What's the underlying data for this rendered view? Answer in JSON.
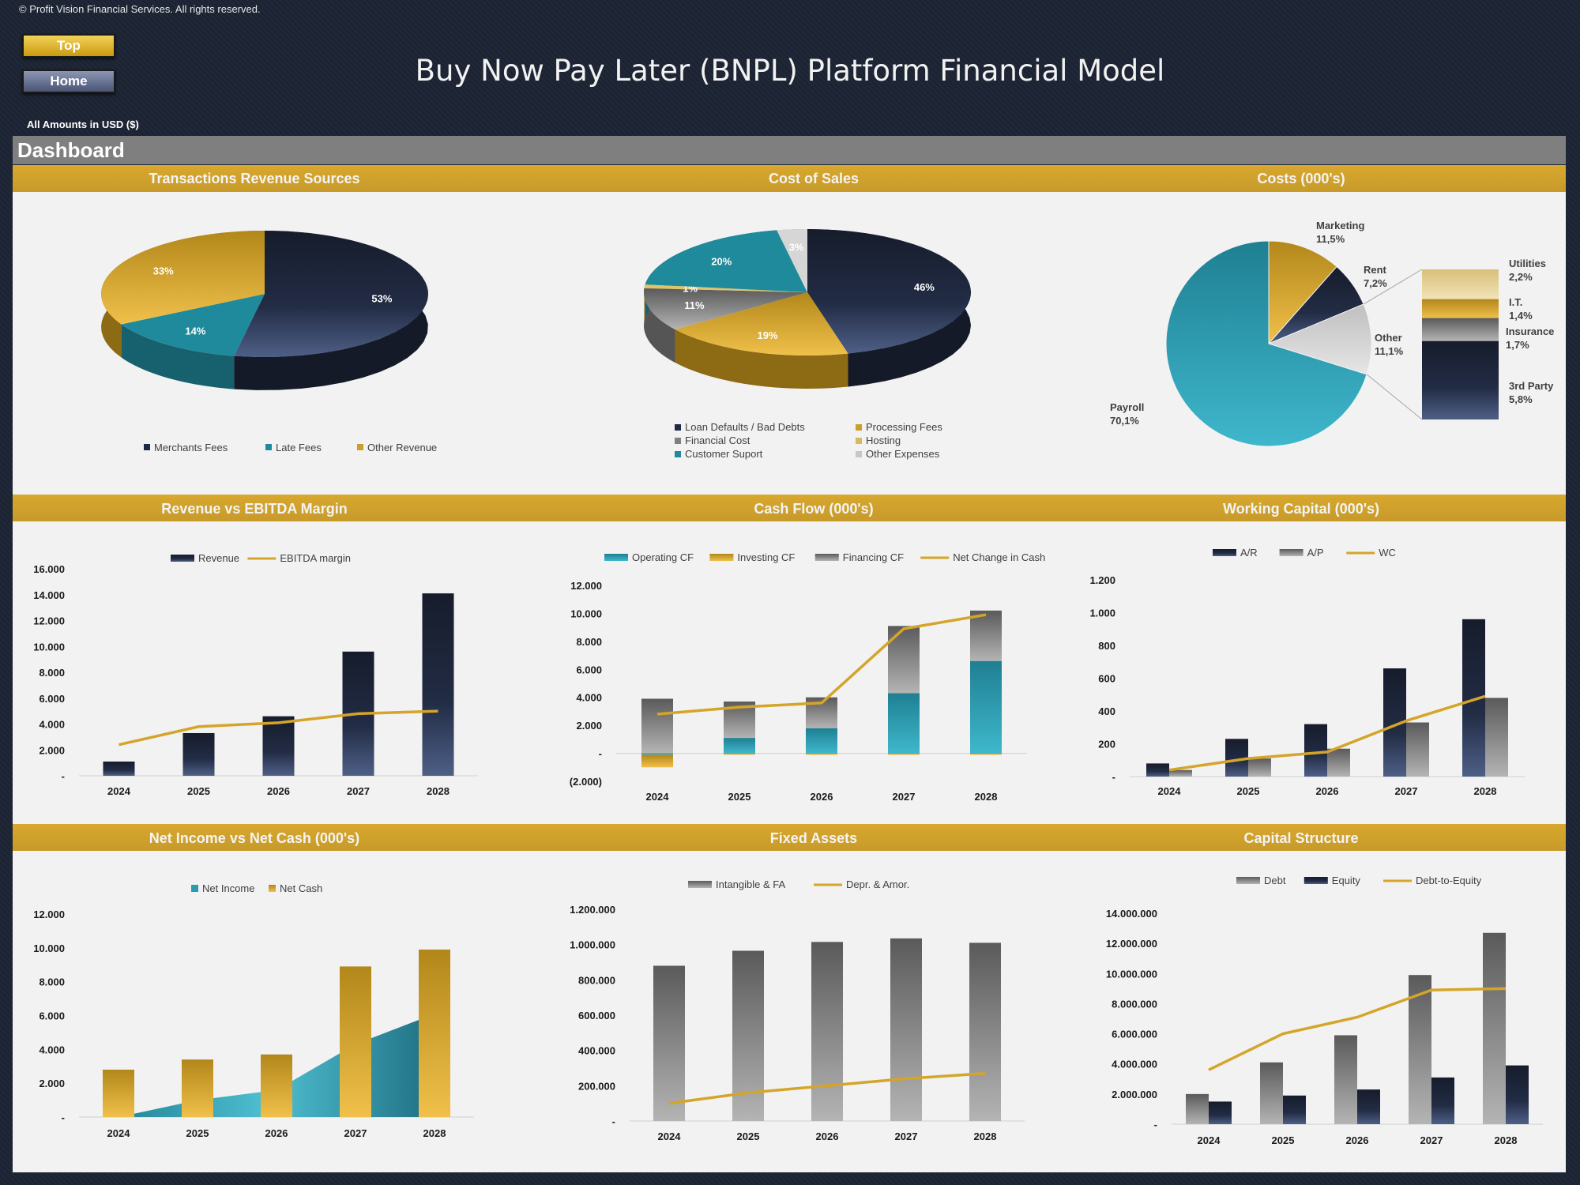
{
  "header": {
    "copyright": "© Profit Vision Financial Services. All rights reserved.",
    "title": "Buy Now Pay Later (BNPL) Platform Financial Model",
    "top_label": "Top",
    "home_label": "Home",
    "currency_label": "All Amounts in  USD ($)",
    "dashboard_label": "Dashboard"
  },
  "colors": {
    "navy": "#1e2a44",
    "teal": "#2a9bb0",
    "gold": "#d4a52a",
    "gray": "#808080",
    "lightgray": "#cfcfcf",
    "bar": "#c99f2e"
  },
  "chart_data": [
    {
      "id": "revenue_sources",
      "type": "pie",
      "title": "Transactions Revenue Sources",
      "categories": [
        "Merchants Fees",
        "Late Fees",
        "Other Revenue"
      ],
      "values": [
        53,
        14,
        33
      ],
      "labels": [
        "53%",
        "14%",
        "33%"
      ],
      "legend": "bottom"
    },
    {
      "id": "cost_of_sales",
      "type": "pie",
      "title": "Cost of Sales",
      "categories": [
        "Loan Defaults / Bad Debts",
        "Processing Fees",
        "Financial Cost",
        "Hosting",
        "Customer Suport",
        "Other Expenses"
      ],
      "values": [
        46,
        19,
        11,
        1,
        20,
        3
      ],
      "labels": [
        "46%",
        "19%",
        "11%",
        "1%",
        "20%",
        "3%"
      ],
      "legend": "bottom"
    },
    {
      "id": "costs",
      "type": "pie",
      "title": "Costs (000's)",
      "categories": [
        "Payroll",
        "Marketing",
        "Rent",
        "Other"
      ],
      "values": [
        70.1,
        11.5,
        7.2,
        11.1
      ],
      "labels": [
        "Payroll\n70,1%",
        "Marketing\n11,5%",
        "Rent\n7,2%",
        "Other\n11,1%"
      ],
      "breakout": {
        "categories": [
          "Utilities",
          "I.T.",
          "Insurance",
          "3rd Party"
        ],
        "values": [
          2.2,
          1.4,
          1.7,
          5.8
        ],
        "labels": [
          "Utilities\n2,2%",
          "I.T.\n1,4%",
          "Insurance\n1,7%",
          "3rd Party\n5,8%"
        ]
      }
    },
    {
      "id": "revenue_ebitda",
      "type": "bar",
      "title": "Revenue vs EBITDA Margin",
      "categories": [
        "2024",
        "2025",
        "2026",
        "2027",
        "2028"
      ],
      "series": [
        {
          "name": "Revenue",
          "values": [
            1100,
            3300,
            4600,
            9600,
            14100
          ]
        },
        {
          "name": "EBITDA margin",
          "kind": "line",
          "values": [
            2400,
            3800,
            4100,
            4800,
            5000
          ]
        }
      ],
      "yticks": [
        "-",
        "2.000",
        "4.000",
        "6.000",
        "8.000",
        "10.000",
        "12.000",
        "14.000",
        "16.000"
      ],
      "ylim": [
        0,
        16000
      ],
      "legend": "top"
    },
    {
      "id": "cash_flow",
      "type": "bar",
      "title": "Cash Flow (000's)",
      "categories": [
        "2024",
        "2025",
        "2026",
        "2027",
        "2028"
      ],
      "series": [
        {
          "name": "Operating CF",
          "values": [
            -100,
            1100,
            1800,
            4300,
            6600
          ]
        },
        {
          "name": "Investing CF",
          "values": [
            -900,
            -100,
            -100,
            -100,
            -100
          ]
        },
        {
          "name": "Financing CF",
          "values": [
            3900,
            2600,
            2200,
            4800,
            3600
          ]
        },
        {
          "name": "Net Change in Cash",
          "kind": "line",
          "values": [
            2800,
            3300,
            3600,
            8900,
            9900
          ]
        }
      ],
      "yticks": [
        "(2.000)",
        "-",
        "2.000",
        "4.000",
        "6.000",
        "8.000",
        "10.000",
        "12.000"
      ],
      "ylim": [
        -2000,
        12000
      ],
      "legend": "top"
    },
    {
      "id": "working_capital",
      "type": "bar",
      "title": "Working Capital (000's)",
      "categories": [
        "2024",
        "2025",
        "2026",
        "2027",
        "2028"
      ],
      "series": [
        {
          "name": "A/R",
          "values": [
            80,
            230,
            320,
            660,
            960
          ]
        },
        {
          "name": "A/P",
          "values": [
            40,
            110,
            170,
            330,
            480
          ]
        },
        {
          "name": "WC",
          "kind": "line",
          "values": [
            40,
            110,
            150,
            340,
            490
          ]
        }
      ],
      "yticks": [
        "-",
        "200",
        "400",
        "600",
        "800",
        "1.000",
        "1.200"
      ],
      "ylim": [
        0,
        1200
      ],
      "legend": "top"
    },
    {
      "id": "net_income_cash",
      "type": "bar",
      "title": "Net Income vs Net Cash (000's)",
      "categories": [
        "2024",
        "2025",
        "2026",
        "2027",
        "2028"
      ],
      "series": [
        {
          "name": "Net Income",
          "kind": "area",
          "values": [
            0,
            1000,
            1600,
            4300,
            6100
          ]
        },
        {
          "name": "Net Cash",
          "values": [
            2800,
            3400,
            3700,
            8900,
            9900
          ]
        }
      ],
      "yticks": [
        "-",
        "2.000",
        "4.000",
        "6.000",
        "8.000",
        "10.000",
        "12.000"
      ],
      "ylim": [
        0,
        12000
      ],
      "legend": "top"
    },
    {
      "id": "fixed_assets",
      "type": "bar",
      "title": "Fixed Assets",
      "categories": [
        "2024",
        "2025",
        "2026",
        "2027",
        "2028"
      ],
      "series": [
        {
          "name": "Intangible & FA",
          "values": [
            880000,
            965000,
            1015000,
            1035000,
            1010000
          ]
        },
        {
          "name": "Depr. & Amor.",
          "kind": "line",
          "values": [
            100000,
            160000,
            200000,
            240000,
            270000
          ]
        }
      ],
      "yticks": [
        "-",
        "200.000",
        "400.000",
        "600.000",
        "800.000",
        "1.000.000",
        "1.200.000"
      ],
      "ylim": [
        0,
        1200000
      ],
      "legend": "top"
    },
    {
      "id": "capital_structure",
      "type": "bar",
      "title": "Capital Structure",
      "categories": [
        "2024",
        "2025",
        "2026",
        "2027",
        "2028"
      ],
      "series": [
        {
          "name": "Debt",
          "values": [
            2000000,
            4100000,
            5900000,
            9900000,
            12700000
          ]
        },
        {
          "name": "Equity",
          "values": [
            1500000,
            1900000,
            2300000,
            3100000,
            3900000
          ]
        },
        {
          "name": "Debt-to-Equity",
          "kind": "line",
          "values": [
            3600000,
            6000000,
            7100000,
            8900000,
            9000000
          ]
        }
      ],
      "yticks": [
        "-",
        "2.000.000",
        "4.000.000",
        "6.000.000",
        "8.000.000",
        "10.000.000",
        "12.000.000",
        "14.000.000"
      ],
      "ylim": [
        0,
        14000000
      ],
      "legend": "top"
    }
  ]
}
